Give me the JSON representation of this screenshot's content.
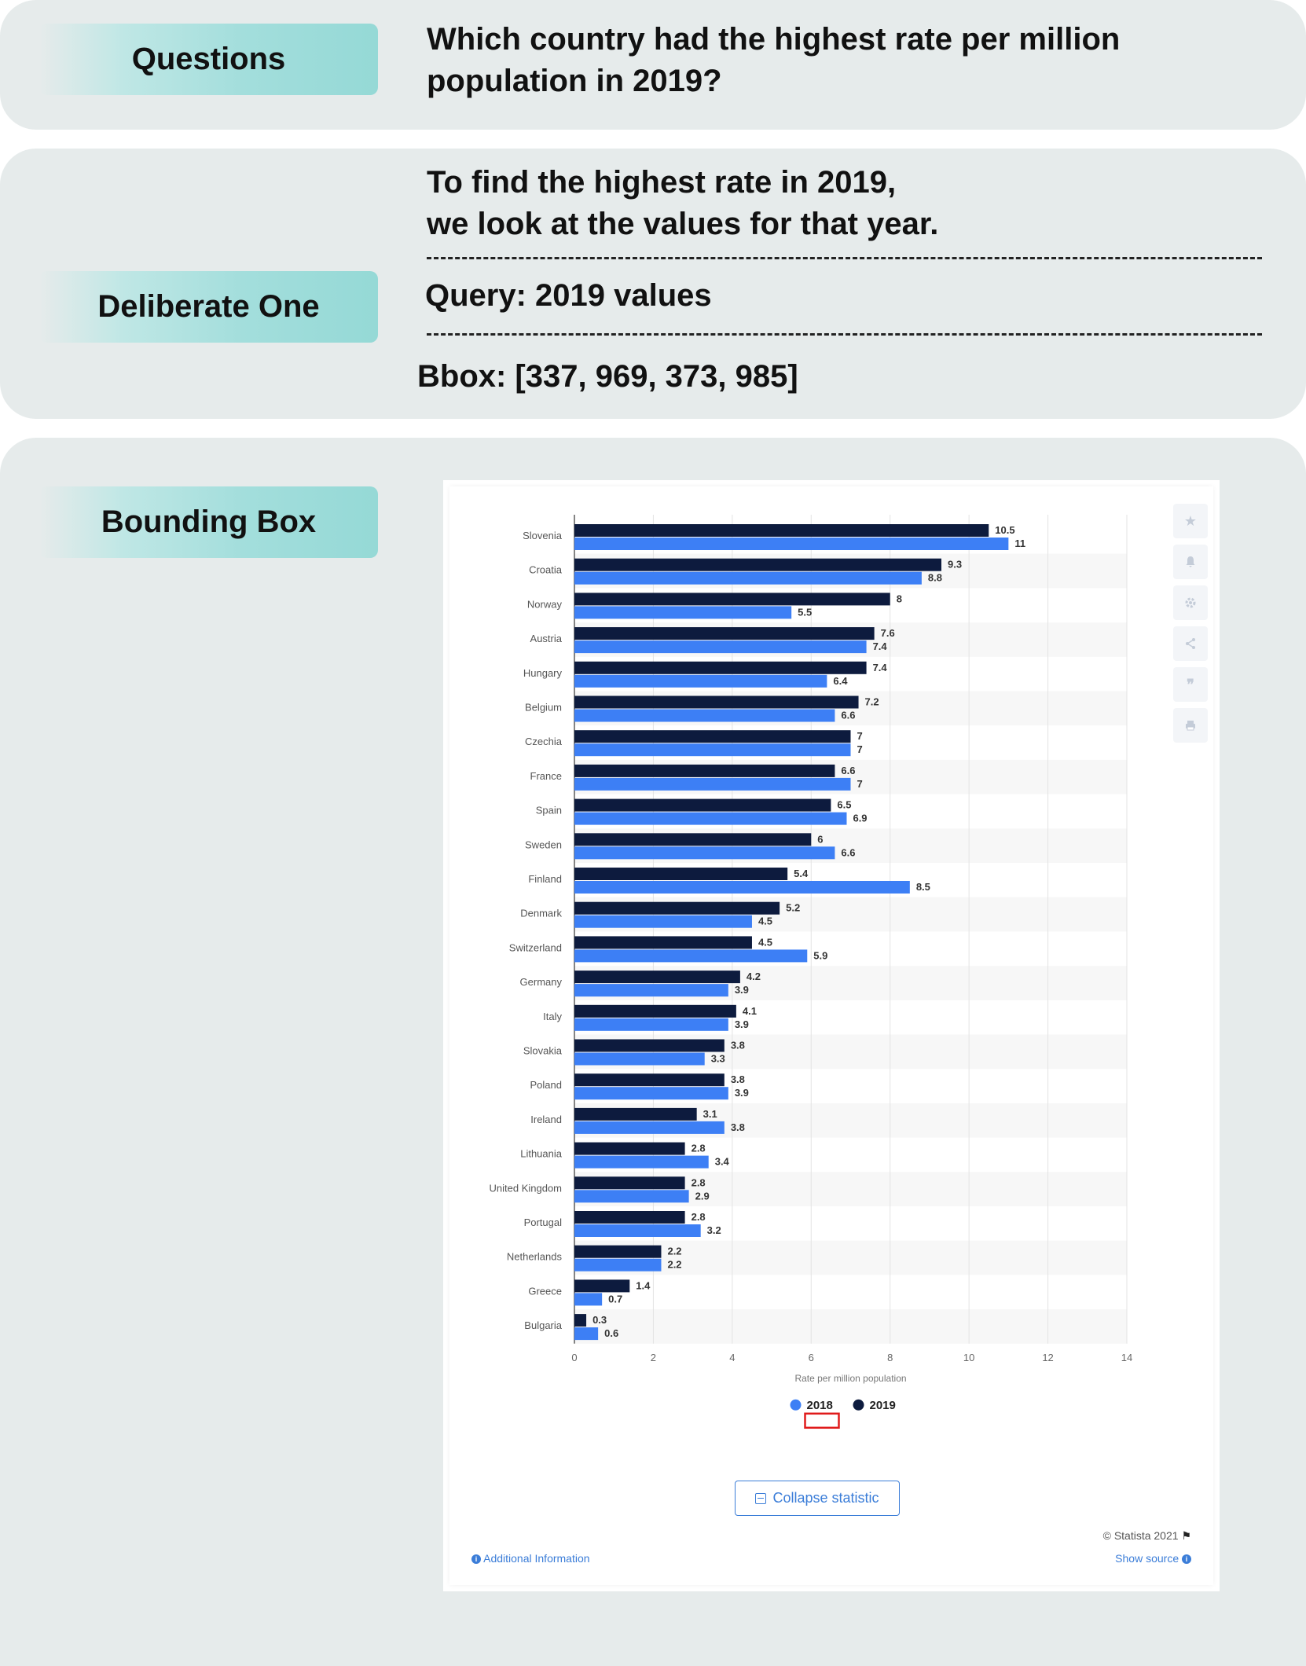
{
  "questions": {
    "label": "Questions",
    "lines": [
      "Which country had the highest rate per million",
      "population in 2019?"
    ]
  },
  "deliberate": {
    "label": "Deliberate One",
    "lines": [
      "To find the highest rate in 2019,",
      "we look at the values for that year."
    ],
    "query": "Query: 2019 values",
    "bbox": "Bbox: [337, 969, 373, 985]"
  },
  "bounding": {
    "label": "Bounding Box"
  },
  "chart_data": {
    "type": "bar",
    "orientation": "horizontal",
    "categories": [
      "Slovenia",
      "Croatia",
      "Norway",
      "Austria",
      "Hungary",
      "Belgium",
      "Czechia",
      "France",
      "Spain",
      "Sweden",
      "Finland",
      "Denmark",
      "Switzerland",
      "Germany",
      "Italy",
      "Slovakia",
      "Poland",
      "Ireland",
      "Lithuania",
      "United Kingdom",
      "Portugal",
      "Netherlands",
      "Greece",
      "Bulgaria"
    ],
    "series": [
      {
        "name": "2019",
        "color": "#0d1b3e",
        "values": [
          10.5,
          9.3,
          8,
          7.6,
          7.4,
          7.2,
          7,
          6.6,
          6.5,
          6,
          5.4,
          5.2,
          4.5,
          4.2,
          4.1,
          3.8,
          3.8,
          3.1,
          2.8,
          2.8,
          2.8,
          2.2,
          1.4,
          0.3
        ]
      },
      {
        "name": "2018",
        "color": "#3d7ff5",
        "values": [
          11,
          8.8,
          5.5,
          7.4,
          6.4,
          6.6,
          7,
          7,
          6.9,
          6.6,
          8.5,
          4.5,
          5.9,
          3.9,
          3.9,
          3.3,
          3.9,
          3.8,
          3.4,
          2.9,
          3.2,
          2.2,
          0.7,
          0.6
        ]
      }
    ],
    "xlabel": "Rate per million population",
    "xlim": [
      0,
      14
    ],
    "xticks": [
      0,
      2,
      4,
      6,
      8,
      10,
      12,
      14
    ],
    "legend": [
      {
        "name": "2018",
        "color": "#3d7ff5"
      },
      {
        "name": "2019",
        "color": "#0d1b3e"
      }
    ],
    "legend_position": "bottom",
    "grid": true,
    "highlight_color": "#e01b1b"
  },
  "widget": {
    "collapse_label": "Collapse statistic",
    "copyright": "© Statista 2021",
    "additional_info": "Additional Information",
    "show_source": "Show source",
    "side_icons": [
      "star-icon",
      "bell-icon",
      "gear-icon",
      "share-icon",
      "quote-icon",
      "print-icon"
    ]
  }
}
